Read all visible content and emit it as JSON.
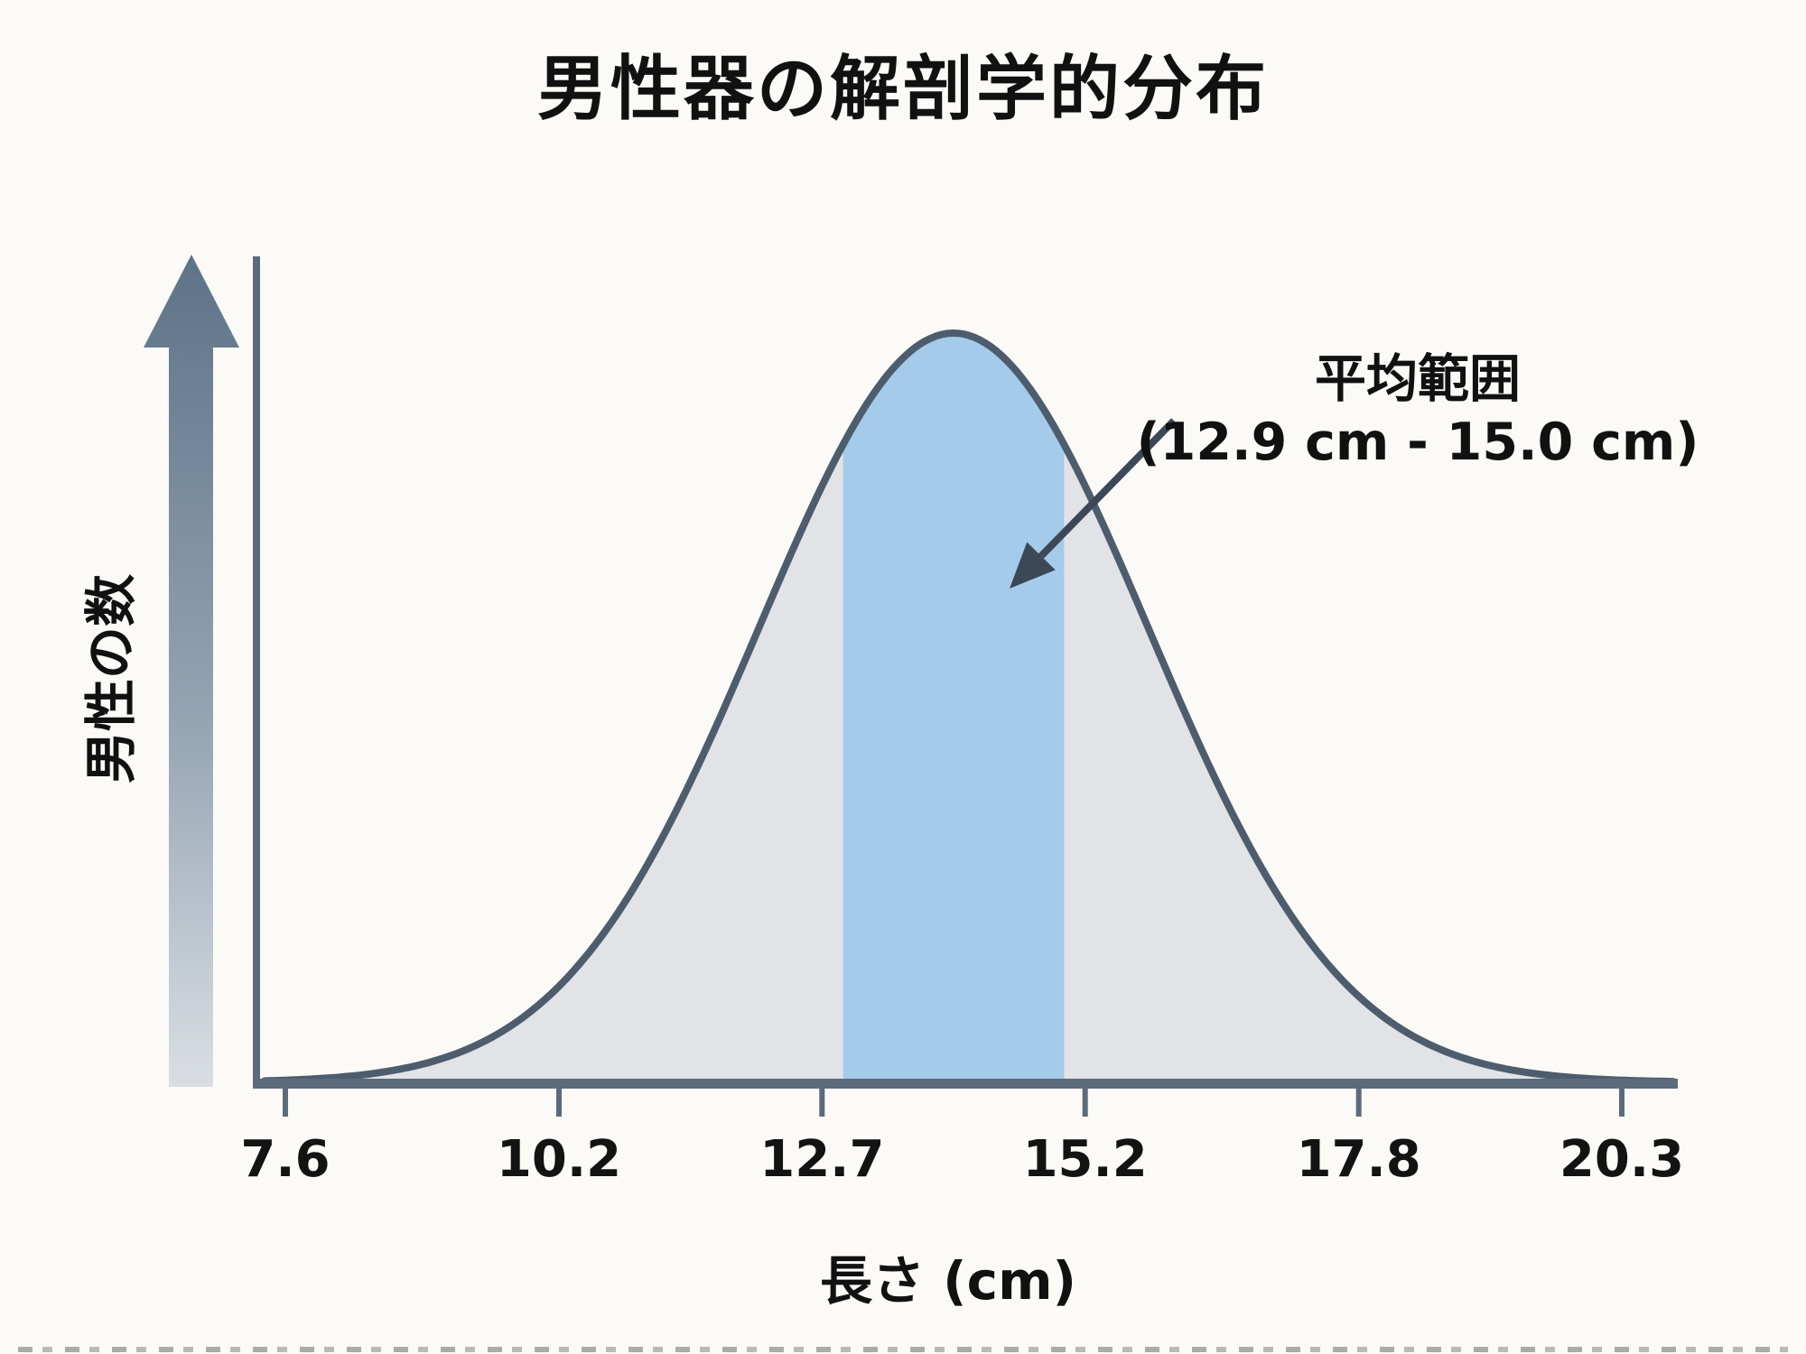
{
  "title": "男性器の解剖学的分布",
  "y_axis": {
    "label": "男性の数"
  },
  "x_axis": {
    "label": "長さ (cm)"
  },
  "annotation": {
    "line1": "平均範囲",
    "line2": "(12.9 cm - 15.0 cm)"
  },
  "colors": {
    "background": "#fbfaf7",
    "curve_stroke": "#4d5d6e",
    "curve_fill_gray": "#e2e3e7",
    "highlight_blue": "#a4cbe9",
    "axis": "#5c6b7b",
    "arrow_gradient_top": "#5e7388",
    "arrow_gradient_bottom": "#dadee3",
    "annotation_arrow": "#3c4855",
    "text": "#111111"
  },
  "chart_data": {
    "type": "area",
    "title": "男性器の解剖学的分布",
    "xlabel": "長さ (cm)",
    "ylabel": "男性の数",
    "x_ticks_cm": [
      7.6,
      10.2,
      12.7,
      15.2,
      17.8,
      20.3
    ],
    "xlim_cm": [
      7.3,
      20.8
    ],
    "distribution": "normal",
    "mean_cm": 13.95,
    "sigma_cm": 1.85,
    "highlight_range_cm": [
      12.9,
      15.0
    ],
    "highlight_label": "平均範囲 (12.9 cm - 15.0 cm)",
    "y_axis_quantitative_labels": false,
    "grid": false,
    "legend": false
  }
}
